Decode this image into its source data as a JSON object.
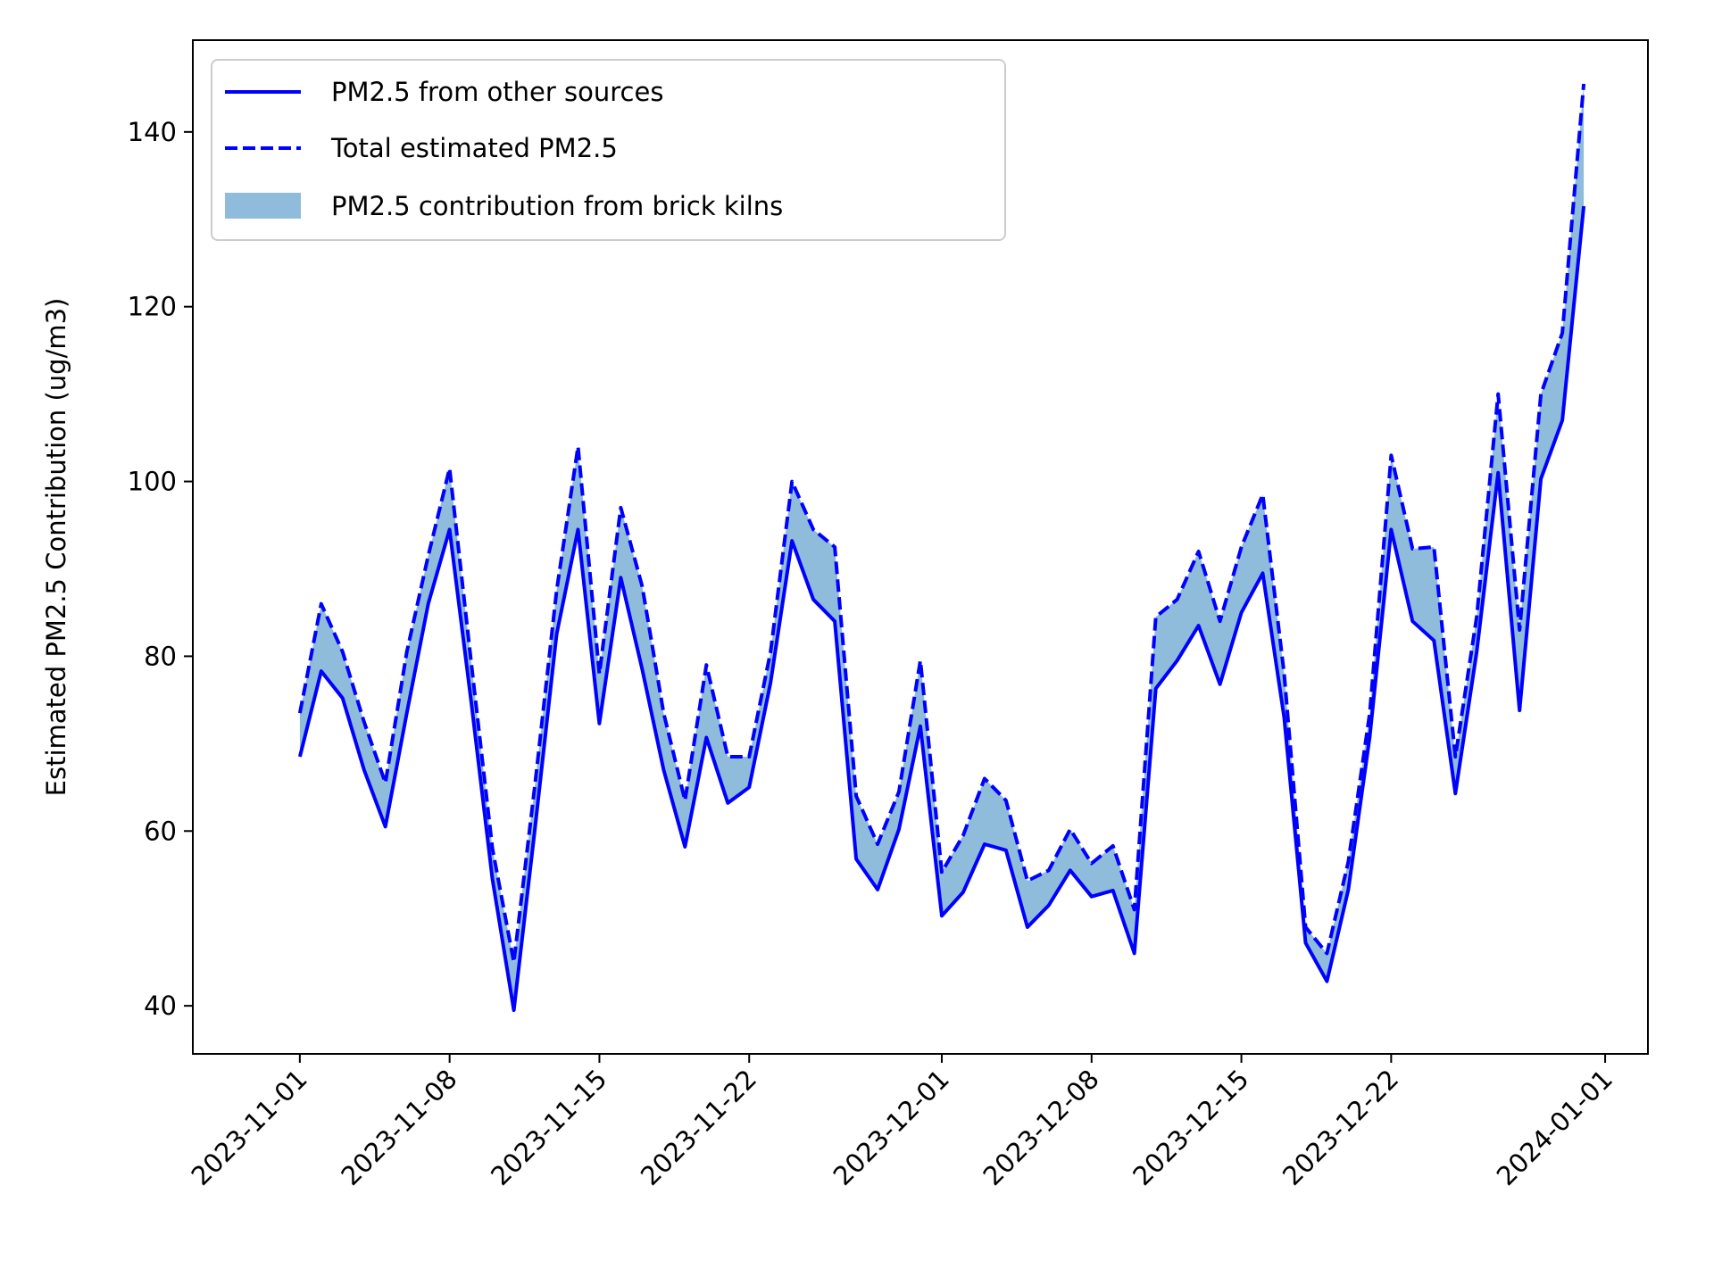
{
  "chart_data": {
    "type": "line",
    "title": "",
    "xlabel": "",
    "ylabel": "Estimated PM2.5 Contribution (ug/m3)",
    "ylim": [
      34.5,
      150.5
    ],
    "xlim": [
      "2023-10-27",
      "2024-01-03"
    ],
    "yticks": [
      40,
      60,
      80,
      100,
      120,
      140
    ],
    "xticks": [
      "2023-11-01",
      "2023-11-08",
      "2023-11-15",
      "2023-11-22",
      "2023-12-01",
      "2023-12-08",
      "2023-12-15",
      "2023-12-22",
      "2024-01-01"
    ],
    "grid": false,
    "legend_position": "upper-left",
    "colors": {
      "line": "#0000ff",
      "fill": "#8fbcdb"
    },
    "x": [
      "2023-11-01",
      "2023-11-02",
      "2023-11-03",
      "2023-11-04",
      "2023-11-05",
      "2023-11-06",
      "2023-11-07",
      "2023-11-08",
      "2023-11-09",
      "2023-11-10",
      "2023-11-11",
      "2023-11-12",
      "2023-11-13",
      "2023-11-14",
      "2023-11-15",
      "2023-11-16",
      "2023-11-17",
      "2023-11-18",
      "2023-11-19",
      "2023-11-20",
      "2023-11-21",
      "2023-11-22",
      "2023-11-23",
      "2023-11-24",
      "2023-11-25",
      "2023-11-26",
      "2023-11-27",
      "2023-11-28",
      "2023-11-29",
      "2023-11-30",
      "2023-12-01",
      "2023-12-02",
      "2023-12-03",
      "2023-12-04",
      "2023-12-05",
      "2023-12-06",
      "2023-12-07",
      "2023-12-08",
      "2023-12-09",
      "2023-12-10",
      "2023-12-11",
      "2023-12-12",
      "2023-12-13",
      "2023-12-14",
      "2023-12-15",
      "2023-12-16",
      "2023-12-17",
      "2023-12-18",
      "2023-12-19",
      "2023-12-20",
      "2023-12-21",
      "2023-12-22",
      "2023-12-23",
      "2023-12-24",
      "2023-12-25",
      "2023-12-26",
      "2023-12-27",
      "2023-12-28",
      "2023-12-29",
      "2023-12-30",
      "2023-12-31"
    ],
    "series": [
      {
        "name": "PM2.5 from other sources",
        "style": "solid",
        "values": [
          68.5,
          78.3,
          75.2,
          67.0,
          60.5,
          73.5,
          86.0,
          94.5,
          75.0,
          54.5,
          39.5,
          60.5,
          82.5,
          94.5,
          72.3,
          89.0,
          78.5,
          67.0,
          58.2,
          70.7,
          63.2,
          65.0,
          77.0,
          93.2,
          86.5,
          84.0,
          56.8,
          53.3,
          60.2,
          72.0,
          50.3,
          53.0,
          58.5,
          57.8,
          49.0,
          51.5,
          55.5,
          52.5,
          53.2,
          46.0,
          76.3,
          79.5,
          83.5,
          76.8,
          85.0,
          89.5,
          73.0,
          47.2,
          42.8,
          53.3,
          70.8,
          94.5,
          84.0,
          81.8,
          64.3,
          80.5,
          101.0,
          73.8,
          100.3,
          107.0,
          131.5
        ]
      },
      {
        "name": "Total estimated PM2.5",
        "style": "dashed",
        "values": [
          73.5,
          86.0,
          80.5,
          72.5,
          65.5,
          80.5,
          91.5,
          101.5,
          79.5,
          58.0,
          45.0,
          65.5,
          87.5,
          104.0,
          78.0,
          97.0,
          88.0,
          73.5,
          63.5,
          79.0,
          68.5,
          68.5,
          80.5,
          100.0,
          94.5,
          92.5,
          64.0,
          58.5,
          64.5,
          79.5,
          55.3,
          59.5,
          66.0,
          63.5,
          54.3,
          55.5,
          60.2,
          56.3,
          58.3,
          51.0,
          84.5,
          86.5,
          92.0,
          84.0,
          92.5,
          98.5,
          78.0,
          49.0,
          46.0,
          56.5,
          73.5,
          103.0,
          92.3,
          92.5,
          68.5,
          84.5,
          110.0,
          83.0,
          110.0,
          117.0,
          145.5
        ]
      }
    ],
    "fill_between": {
      "name": "PM2.5 contribution from brick kilns",
      "lower": "PM2.5 from other sources",
      "upper": "Total estimated PM2.5"
    }
  }
}
